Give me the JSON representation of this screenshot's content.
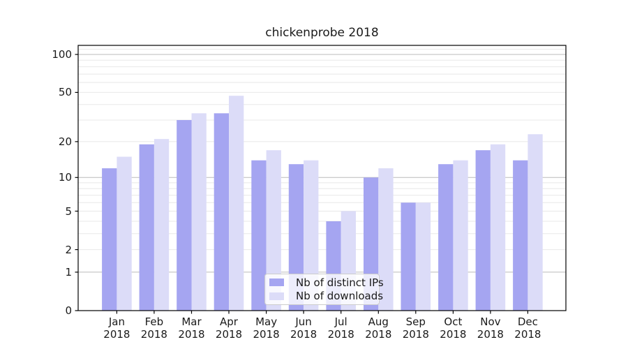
{
  "chart_data": {
    "type": "bar",
    "title": "chickenprobe 2018",
    "categories": [
      "Jan 2018",
      "Feb 2018",
      "Mar 2018",
      "Apr 2018",
      "May 2018",
      "Jun 2018",
      "Jul 2018",
      "Aug 2018",
      "Sep 2018",
      "Oct 2018",
      "Nov 2018",
      "Dec 2018"
    ],
    "xtick_labels": [
      [
        "Jan",
        "2018"
      ],
      [
        "Feb",
        "2018"
      ],
      [
        "Mar",
        "2018"
      ],
      [
        "Apr",
        "2018"
      ],
      [
        "May",
        "2018"
      ],
      [
        "Jun",
        "2018"
      ],
      [
        "Jul",
        "2018"
      ],
      [
        "Aug",
        "2018"
      ],
      [
        "Sep",
        "2018"
      ],
      [
        "Oct",
        "2018"
      ],
      [
        "Nov",
        "2018"
      ],
      [
        "Dec",
        "2018"
      ]
    ],
    "series": [
      {
        "name": "Nb of distinct IPs",
        "color": "#a5a5f1",
        "values": [
          12,
          19,
          30,
          34,
          14,
          13,
          4,
          10,
          6,
          13,
          17,
          14
        ]
      },
      {
        "name": "Nb of downloads",
        "color": "#dcdcf8",
        "values": [
          15,
          21,
          34,
          47,
          17,
          14,
          5,
          12,
          6,
          14,
          19,
          23
        ]
      }
    ],
    "yscale": "log10(value+1)",
    "ylim": [
      0,
      118
    ],
    "ytick_labels": [
      100,
      50,
      20,
      10,
      5,
      2,
      1,
      0
    ],
    "major_gridlines": [
      1,
      10,
      100
    ],
    "minor_gridlines": [
      2,
      3,
      4,
      5,
      6,
      7,
      8,
      9,
      20,
      30,
      40,
      50,
      60,
      70,
      80,
      90,
      110
    ],
    "grid": true,
    "legend_position": "lower center"
  },
  "colors": {
    "background": "#ffffff",
    "major_grid": "#bbbbbb",
    "minor_grid": "#e8e8e8",
    "spine": "#000000",
    "text": "#1a1a1a",
    "legend_border": "#cccccc"
  }
}
